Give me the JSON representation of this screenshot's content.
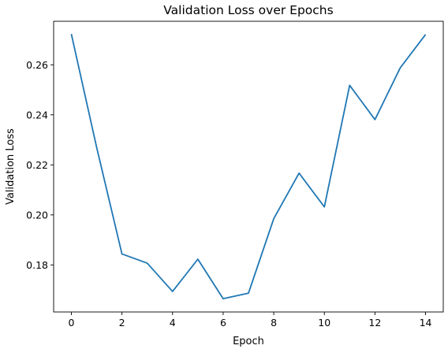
{
  "chart_data": {
    "type": "line",
    "title": "Validation Loss over Epochs",
    "xlabel": "Epoch",
    "ylabel": "Validation Loss",
    "xlim": [
      -0.7,
      14.7
    ],
    "ylim": [
      0.1612,
      0.2774
    ],
    "xticks": [
      0,
      2,
      4,
      6,
      8,
      10,
      12,
      14
    ],
    "yticks": [
      0.18,
      0.2,
      0.22,
      0.24,
      0.26
    ],
    "ytick_labels": [
      "0.18",
      "0.20",
      "0.22",
      "0.24",
      "0.26"
    ],
    "grid": false,
    "legend": "none",
    "series": [
      {
        "color": "#1f77b4",
        "x": [
          0,
          1,
          2,
          3,
          4,
          5,
          6,
          7,
          8,
          9,
          10,
          11,
          12,
          13,
          14
        ],
        "y": [
          0.2723,
          0.227,
          0.1844,
          0.1807,
          0.1694,
          0.1823,
          0.1665,
          0.1687,
          0.1985,
          0.2167,
          0.2032,
          0.2518,
          0.2381,
          0.2588,
          0.2721
        ]
      }
    ]
  }
}
